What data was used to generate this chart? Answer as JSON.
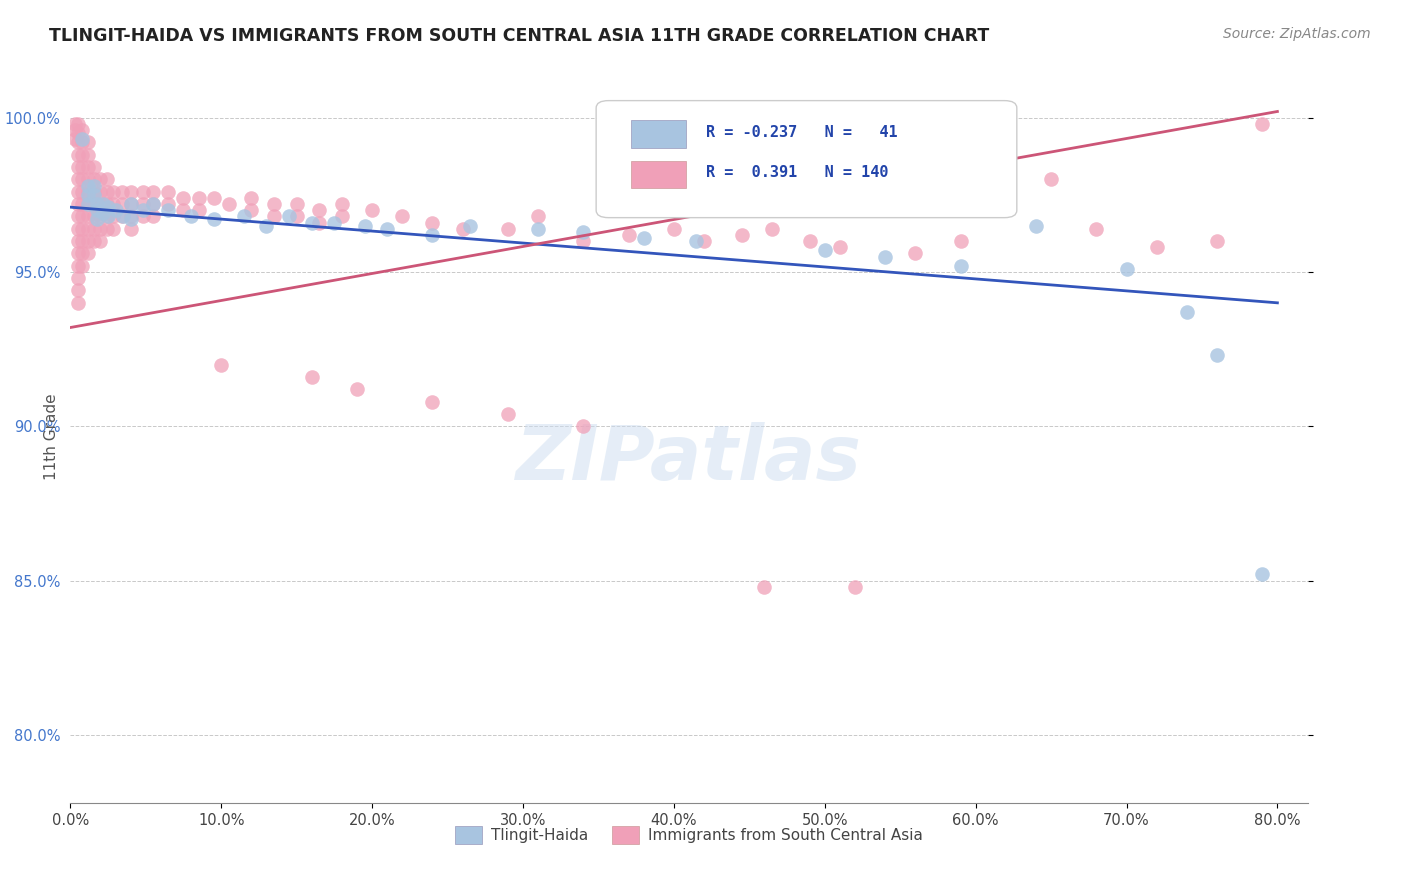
{
  "title": "TLINGIT-HAIDA VS IMMIGRANTS FROM SOUTH CENTRAL ASIA 11TH GRADE CORRELATION CHART",
  "source": "Source: ZipAtlas.com",
  "ylabel_label": "11th Grade",
  "xlim": [
    0.0,
    0.82
  ],
  "ylim": [
    0.778,
    1.015
  ],
  "blue_color": "#a8c4e0",
  "pink_color": "#f0a0b8",
  "blue_line_color": "#3355bb",
  "pink_line_color": "#cc5577",
  "watermark": "ZIPatlas",
  "blue_scatter": [
    [
      0.008,
      0.993
    ],
    [
      0.012,
      0.978
    ],
    [
      0.012,
      0.975
    ],
    [
      0.012,
      0.972
    ],
    [
      0.016,
      0.978
    ],
    [
      0.016,
      0.975
    ],
    [
      0.018,
      0.972
    ],
    [
      0.018,
      0.97
    ],
    [
      0.018,
      0.967
    ],
    [
      0.022,
      0.972
    ],
    [
      0.022,
      0.969
    ],
    [
      0.025,
      0.971
    ],
    [
      0.025,
      0.968
    ],
    [
      0.03,
      0.97
    ],
    [
      0.035,
      0.968
    ],
    [
      0.04,
      0.972
    ],
    [
      0.04,
      0.967
    ],
    [
      0.048,
      0.97
    ],
    [
      0.055,
      0.972
    ],
    [
      0.065,
      0.97
    ],
    [
      0.08,
      0.968
    ],
    [
      0.095,
      0.967
    ],
    [
      0.115,
      0.968
    ],
    [
      0.13,
      0.965
    ],
    [
      0.145,
      0.968
    ],
    [
      0.16,
      0.966
    ],
    [
      0.175,
      0.966
    ],
    [
      0.195,
      0.965
    ],
    [
      0.21,
      0.964
    ],
    [
      0.24,
      0.962
    ],
    [
      0.265,
      0.965
    ],
    [
      0.31,
      0.964
    ],
    [
      0.34,
      0.963
    ],
    [
      0.38,
      0.961
    ],
    [
      0.415,
      0.96
    ],
    [
      0.5,
      0.957
    ],
    [
      0.54,
      0.955
    ],
    [
      0.59,
      0.952
    ],
    [
      0.64,
      0.965
    ],
    [
      0.7,
      0.951
    ],
    [
      0.74,
      0.937
    ],
    [
      0.76,
      0.923
    ],
    [
      0.79,
      0.852
    ]
  ],
  "pink_scatter": [
    [
      0.003,
      0.998
    ],
    [
      0.003,
      0.996
    ],
    [
      0.003,
      0.993
    ],
    [
      0.005,
      0.998
    ],
    [
      0.005,
      0.995
    ],
    [
      0.005,
      0.992
    ],
    [
      0.005,
      0.988
    ],
    [
      0.005,
      0.984
    ],
    [
      0.005,
      0.98
    ],
    [
      0.005,
      0.976
    ],
    [
      0.005,
      0.972
    ],
    [
      0.005,
      0.968
    ],
    [
      0.005,
      0.964
    ],
    [
      0.005,
      0.96
    ],
    [
      0.005,
      0.956
    ],
    [
      0.005,
      0.952
    ],
    [
      0.005,
      0.948
    ],
    [
      0.005,
      0.944
    ],
    [
      0.005,
      0.94
    ],
    [
      0.008,
      0.996
    ],
    [
      0.008,
      0.992
    ],
    [
      0.008,
      0.988
    ],
    [
      0.008,
      0.984
    ],
    [
      0.008,
      0.98
    ],
    [
      0.008,
      0.976
    ],
    [
      0.008,
      0.972
    ],
    [
      0.008,
      0.968
    ],
    [
      0.008,
      0.964
    ],
    [
      0.008,
      0.96
    ],
    [
      0.008,
      0.956
    ],
    [
      0.008,
      0.952
    ],
    [
      0.012,
      0.992
    ],
    [
      0.012,
      0.988
    ],
    [
      0.012,
      0.984
    ],
    [
      0.012,
      0.98
    ],
    [
      0.012,
      0.976
    ],
    [
      0.012,
      0.972
    ],
    [
      0.012,
      0.968
    ],
    [
      0.012,
      0.964
    ],
    [
      0.012,
      0.96
    ],
    [
      0.012,
      0.956
    ],
    [
      0.016,
      0.984
    ],
    [
      0.016,
      0.98
    ],
    [
      0.016,
      0.976
    ],
    [
      0.016,
      0.972
    ],
    [
      0.016,
      0.968
    ],
    [
      0.016,
      0.964
    ],
    [
      0.016,
      0.96
    ],
    [
      0.02,
      0.98
    ],
    [
      0.02,
      0.976
    ],
    [
      0.02,
      0.972
    ],
    [
      0.02,
      0.968
    ],
    [
      0.02,
      0.964
    ],
    [
      0.02,
      0.96
    ],
    [
      0.024,
      0.98
    ],
    [
      0.024,
      0.976
    ],
    [
      0.024,
      0.972
    ],
    [
      0.024,
      0.968
    ],
    [
      0.024,
      0.964
    ],
    [
      0.028,
      0.976
    ],
    [
      0.028,
      0.972
    ],
    [
      0.028,
      0.968
    ],
    [
      0.028,
      0.964
    ],
    [
      0.034,
      0.976
    ],
    [
      0.034,
      0.972
    ],
    [
      0.034,
      0.968
    ],
    [
      0.04,
      0.976
    ],
    [
      0.04,
      0.972
    ],
    [
      0.04,
      0.968
    ],
    [
      0.04,
      0.964
    ],
    [
      0.048,
      0.976
    ],
    [
      0.048,
      0.972
    ],
    [
      0.048,
      0.968
    ],
    [
      0.055,
      0.976
    ],
    [
      0.055,
      0.972
    ],
    [
      0.055,
      0.968
    ],
    [
      0.065,
      0.976
    ],
    [
      0.065,
      0.972
    ],
    [
      0.075,
      0.974
    ],
    [
      0.075,
      0.97
    ],
    [
      0.085,
      0.974
    ],
    [
      0.085,
      0.97
    ],
    [
      0.095,
      0.974
    ],
    [
      0.105,
      0.972
    ],
    [
      0.12,
      0.974
    ],
    [
      0.12,
      0.97
    ],
    [
      0.135,
      0.972
    ],
    [
      0.135,
      0.968
    ],
    [
      0.15,
      0.972
    ],
    [
      0.15,
      0.968
    ],
    [
      0.165,
      0.97
    ],
    [
      0.165,
      0.966
    ],
    [
      0.18,
      0.972
    ],
    [
      0.18,
      0.968
    ],
    [
      0.2,
      0.97
    ],
    [
      0.22,
      0.968
    ],
    [
      0.24,
      0.966
    ],
    [
      0.26,
      0.964
    ],
    [
      0.29,
      0.964
    ],
    [
      0.31,
      0.968
    ],
    [
      0.34,
      0.96
    ],
    [
      0.37,
      0.962
    ],
    [
      0.4,
      0.964
    ],
    [
      0.42,
      0.96
    ],
    [
      0.445,
      0.962
    ],
    [
      0.465,
      0.964
    ],
    [
      0.49,
      0.96
    ],
    [
      0.51,
      0.958
    ],
    [
      0.54,
      0.97
    ],
    [
      0.56,
      0.956
    ],
    [
      0.59,
      0.96
    ],
    [
      0.62,
      0.972
    ],
    [
      0.65,
      0.98
    ],
    [
      0.68,
      0.964
    ],
    [
      0.72,
      0.958
    ],
    [
      0.76,
      0.96
    ],
    [
      0.79,
      0.998
    ],
    [
      0.1,
      0.92
    ],
    [
      0.16,
      0.916
    ],
    [
      0.19,
      0.912
    ],
    [
      0.24,
      0.908
    ],
    [
      0.29,
      0.904
    ],
    [
      0.34,
      0.9
    ],
    [
      0.46,
      0.848
    ],
    [
      0.52,
      0.848
    ]
  ],
  "blue_line": [
    [
      0.0,
      0.971
    ],
    [
      0.8,
      0.94
    ]
  ],
  "pink_line": [
    [
      0.0,
      0.932
    ],
    [
      0.8,
      1.002
    ]
  ]
}
